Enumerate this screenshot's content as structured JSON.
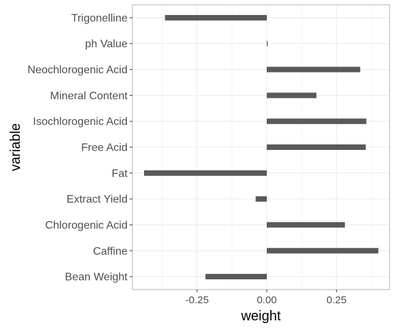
{
  "chart_data": {
    "type": "bar",
    "orientation": "horizontal",
    "title": "",
    "xlabel": "weight",
    "ylabel": "variable",
    "categories": [
      "Bean Weight",
      "Caffine",
      "Chlorogenic Acid",
      "Extract Yield",
      "Fat",
      "Free Acid",
      "Isochlorogenic Acid",
      "Mineral Content",
      "Neochlorogenic Acid",
      "ph Value",
      "Trigonelline"
    ],
    "values": [
      -0.22,
      0.4,
      0.28,
      -0.04,
      -0.44,
      0.355,
      0.357,
      0.178,
      0.335,
      0.002,
      -0.365
    ],
    "xlim": [
      -0.482,
      0.44
    ],
    "xticks": [
      -0.25,
      0.0,
      0.25
    ],
    "xtick_labels": [
      "-0.25",
      "0.00",
      "0.25"
    ],
    "grid": true,
    "legend": "none",
    "colors": {
      "bar": "#595959",
      "grid_major": "#ebebeb",
      "grid_minor": "#f5f5f5",
      "panel_border": "#b3b3b3",
      "axis_text": "#4d4d4d",
      "axis_title": "#000000"
    }
  }
}
